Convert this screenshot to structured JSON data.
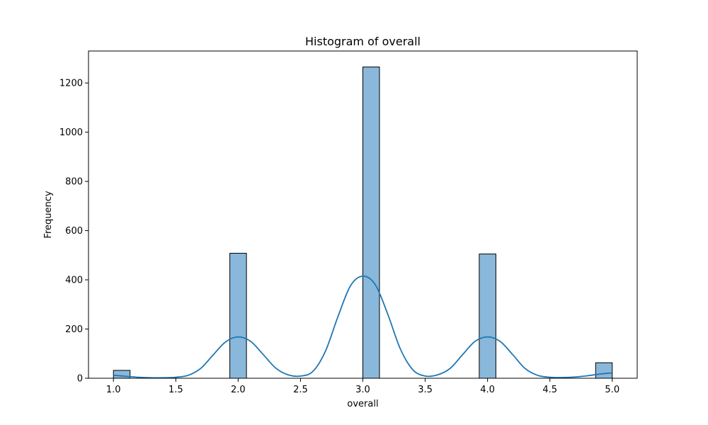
{
  "chart_data": {
    "type": "bar",
    "title": "Histogram of overall",
    "xlabel": "overall",
    "ylabel": "Frequency",
    "xlim": [
      0.8,
      5.2
    ],
    "ylim": [
      0,
      1330
    ],
    "xticks": [
      "1.0",
      "1.5",
      "2.0",
      "2.5",
      "3.0",
      "3.5",
      "4.0",
      "4.5",
      "5.0"
    ],
    "yticks": [
      "0",
      "200",
      "400",
      "600",
      "800",
      "1000",
      "1200"
    ],
    "bin_width": 0.1333,
    "bins": [
      {
        "x0": 1.0,
        "x1": 1.1333,
        "value": 32
      },
      {
        "x0": 1.9333,
        "x1": 2.0667,
        "value": 508
      },
      {
        "x0": 3.0,
        "x1": 3.1333,
        "value": 1265
      },
      {
        "x0": 3.9333,
        "x1": 4.0667,
        "value": 505
      },
      {
        "x0": 4.8667,
        "x1": 5.0,
        "value": 63
      }
    ],
    "kde": {
      "x": [
        1.0,
        1.1,
        1.2,
        1.3,
        1.4,
        1.5,
        1.6,
        1.7,
        1.8,
        1.9,
        2.0,
        2.1,
        2.2,
        2.3,
        2.4,
        2.5,
        2.6,
        2.7,
        2.8,
        2.9,
        3.0,
        3.1,
        3.2,
        3.3,
        3.4,
        3.5,
        3.6,
        3.7,
        3.8,
        3.9,
        4.0,
        4.1,
        4.2,
        4.3,
        4.4,
        4.5,
        4.6,
        4.7,
        4.8,
        4.9,
        5.0
      ],
      "y": [
        12,
        8,
        4,
        2,
        2,
        4,
        12,
        40,
        95,
        148,
        168,
        150,
        97,
        42,
        14,
        9,
        28,
        110,
        250,
        375,
        415,
        380,
        260,
        120,
        35,
        9,
        14,
        40,
        96,
        150,
        168,
        150,
        97,
        40,
        12,
        4,
        3,
        5,
        10,
        17,
        22
      ]
    },
    "bar_fill": "#8ab8da",
    "bar_stroke": "#000000",
    "kde_color": "#1f77b4",
    "grid": false,
    "legend": "none"
  }
}
